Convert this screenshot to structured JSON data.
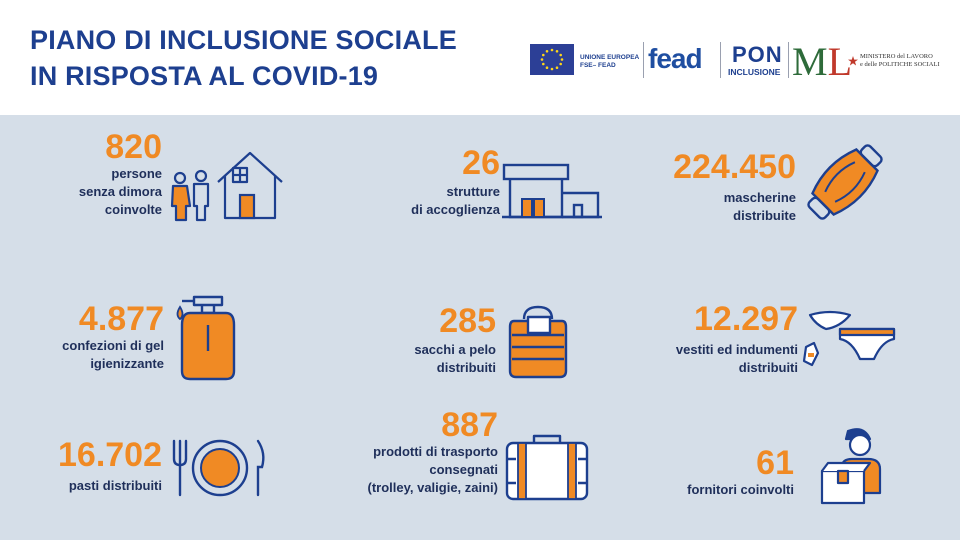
{
  "header": {
    "title_line1": "PIANO DI INCLUSIONE SOCIALE",
    "title_line2": "IN RISPOSTA AL COVID-19",
    "logos": {
      "eu_line1": "UNIONE EUROPEA",
      "eu_line2": "FSE– FEAD",
      "fead": "fead",
      "pon": "PON",
      "pon_sub": "INCLUSIONE",
      "ministero_line1": "MINISTERO del LAVORO",
      "ministero_line2": "e delle POLITICHE SOCIALI"
    }
  },
  "stats": {
    "persone": {
      "value": "820",
      "label_1": "persone",
      "label_2": "senza dimora",
      "label_3": "coinvolte",
      "icon": "people-house-icon"
    },
    "strutture": {
      "value": "26",
      "label_1": "strutture",
      "label_2": "di accoglienza",
      "icon": "building-icon"
    },
    "mascherine": {
      "value": "224.450",
      "label_1": "mascherine",
      "label_2": "distribuite",
      "icon": "face-mask-icon"
    },
    "gel": {
      "value": "4.877",
      "label_1": "confezioni di gel",
      "label_2": "igienizzante",
      "icon": "soap-dispenser-icon"
    },
    "sacchi": {
      "value": "285",
      "label_1": "sacchi a pelo",
      "label_2": "distribuiti",
      "icon": "sleeping-bag-icon"
    },
    "vestiti": {
      "value": "12.297",
      "label_1": "vestiti ed indumenti",
      "label_2": "distribuiti",
      "icon": "clothes-icon"
    },
    "pasti": {
      "value": "16.702",
      "label_1": "pasti distribuiti",
      "icon": "plate-cutlery-icon"
    },
    "trasporto": {
      "value": "887",
      "label_1": "prodotti di trasporto",
      "label_2": "consegnati",
      "label_3": "(trolley, valigie, zaini)",
      "icon": "suitcase-icon"
    },
    "fornitori": {
      "value": "61",
      "label_1": "fornitori coinvolti",
      "icon": "delivery-person-icon"
    }
  },
  "colors": {
    "accent": "#f08a24",
    "navy": "#1d3f8f",
    "panel": "#d5dee8",
    "text": "#1f2f5a"
  }
}
